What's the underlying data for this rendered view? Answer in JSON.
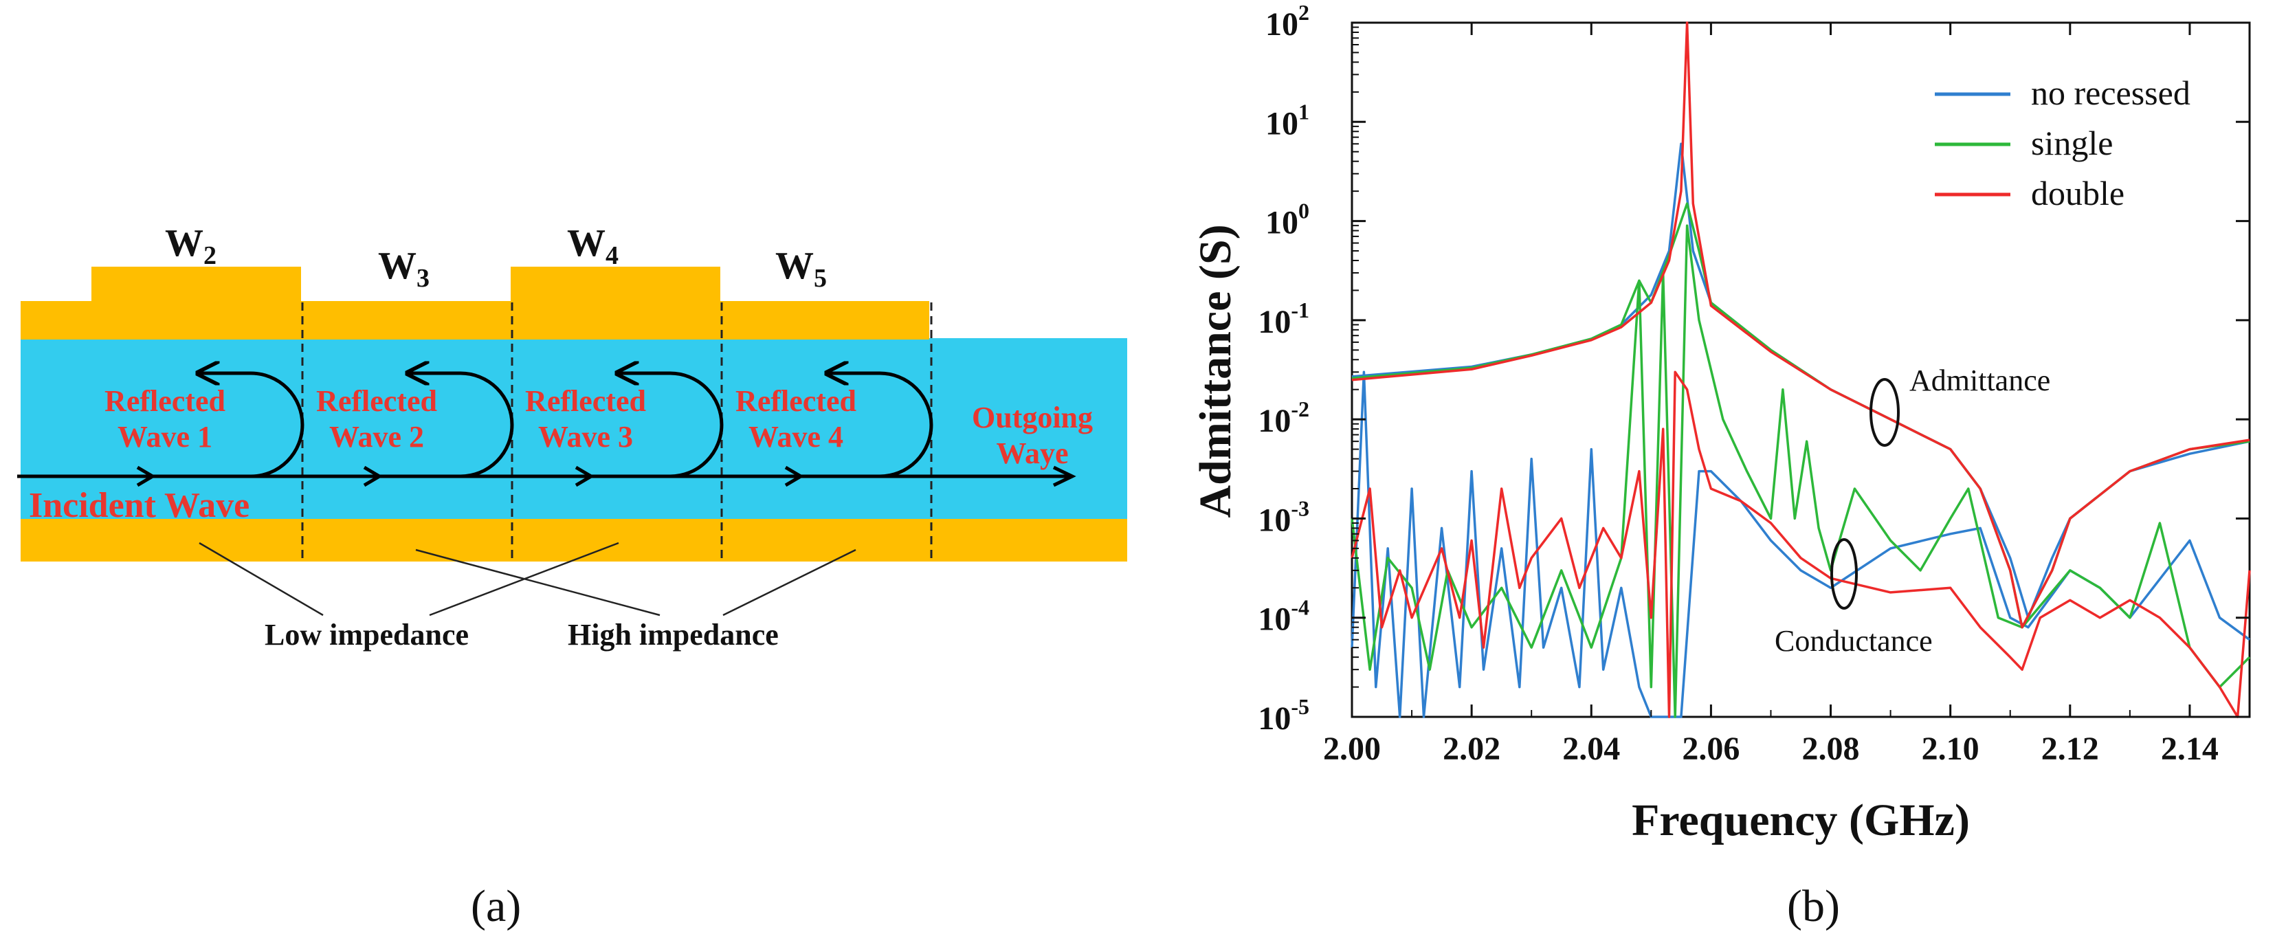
{
  "colors": {
    "electrode": "#FFBE00",
    "substrate": "#33CCEE",
    "wave_text": "#E8372F",
    "arrow": "#000000",
    "no_recessed": "#2F7FCF",
    "single": "#2DB83A",
    "double": "#EE2A2A"
  },
  "panel_a": {
    "label": "(a)",
    "width_labels": [
      {
        "main": "W",
        "sub": "2"
      },
      {
        "main": "W",
        "sub": "3"
      },
      {
        "main": "W",
        "sub": "4"
      },
      {
        "main": "W",
        "sub": "5"
      }
    ],
    "reflected_waves": [
      {
        "line1": "Reflected",
        "line2": "Wave 1"
      },
      {
        "line1": "Reflected",
        "line2": "Wave 2"
      },
      {
        "line1": "Reflected",
        "line2": "Wave 3"
      },
      {
        "line1": "Reflected",
        "line2": "Wave 4"
      }
    ],
    "outgoing": {
      "line1": "Outgoing",
      "line2": "Waye"
    },
    "incident": "Incident Wave",
    "low_impedance": "Low impedance",
    "high_impedance": "High impedance"
  },
  "panel_b": {
    "label": "(b)",
    "annotations": {
      "admittance": "Admittance",
      "conductance": "Conductance"
    }
  },
  "chart_data": {
    "type": "line",
    "xlabel": "Frequency (GHz)",
    "ylabel": "Admittance (S)",
    "xlim": [
      2.0,
      2.15
    ],
    "ylim": [
      1e-05,
      100
    ],
    "yscale": "log",
    "x_ticks": [
      "2.00",
      "2.02",
      "2.04",
      "2.06",
      "2.08",
      "2.10",
      "2.12",
      "2.14"
    ],
    "y_ticks": [
      {
        "base": "10",
        "exp": "-5"
      },
      {
        "base": "10",
        "exp": "-4"
      },
      {
        "base": "10",
        "exp": "-3"
      },
      {
        "base": "10",
        "exp": "-2"
      },
      {
        "base": "10",
        "exp": "-1"
      },
      {
        "base": "10",
        "exp": "0"
      },
      {
        "base": "10",
        "exp": "1"
      },
      {
        "base": "10",
        "exp": "2"
      }
    ],
    "legend_position": "top-right",
    "legend": [
      "no recessed",
      "single",
      "double"
    ],
    "series": [
      {
        "name": "no recessed",
        "admittance": [
          [
            2.0,
            0.027
          ],
          [
            2.02,
            0.034
          ],
          [
            2.03,
            0.045
          ],
          [
            2.04,
            0.065
          ],
          [
            2.045,
            0.09
          ],
          [
            2.05,
            0.18
          ],
          [
            2.053,
            0.5
          ],
          [
            2.055,
            6
          ],
          [
            2.057,
            0.5
          ],
          [
            2.06,
            0.15
          ],
          [
            2.07,
            0.05
          ],
          [
            2.08,
            0.02
          ],
          [
            2.09,
            0.01
          ],
          [
            2.1,
            0.005
          ],
          [
            2.105,
            0.002
          ],
          [
            2.11,
            0.0004
          ],
          [
            2.113,
            0.0001
          ],
          [
            2.117,
            0.0004
          ],
          [
            2.12,
            0.001
          ],
          [
            2.13,
            0.003
          ],
          [
            2.14,
            0.0045
          ],
          [
            2.15,
            0.006
          ]
        ],
        "conductance": [
          [
            2.0,
            5e-05
          ],
          [
            2.002,
            0.03
          ],
          [
            2.004,
            2e-05
          ],
          [
            2.006,
            0.0005
          ],
          [
            2.008,
            1e-05
          ],
          [
            2.01,
            0.002
          ],
          [
            2.012,
            1e-05
          ],
          [
            2.015,
            0.0008
          ],
          [
            2.018,
            2e-05
          ],
          [
            2.02,
            0.003
          ],
          [
            2.022,
            3e-05
          ],
          [
            2.025,
            0.0005
          ],
          [
            2.028,
            2e-05
          ],
          [
            2.03,
            0.004
          ],
          [
            2.032,
            5e-05
          ],
          [
            2.035,
            0.0002
          ],
          [
            2.038,
            2e-05
          ],
          [
            2.04,
            0.005
          ],
          [
            2.042,
            3e-05
          ],
          [
            2.045,
            0.0002
          ],
          [
            2.048,
            2e-05
          ],
          [
            2.05,
            1e-05
          ],
          [
            2.052,
            1e-05
          ],
          [
            2.055,
            1e-05
          ],
          [
            2.058,
            0.003
          ],
          [
            2.06,
            0.003
          ],
          [
            2.065,
            0.0015
          ],
          [
            2.07,
            0.0006
          ],
          [
            2.075,
            0.0003
          ],
          [
            2.08,
            0.0002
          ],
          [
            2.09,
            0.0005
          ],
          [
            2.1,
            0.0007
          ],
          [
            2.105,
            0.0008
          ],
          [
            2.11,
            0.0001
          ],
          [
            2.113,
            8e-05
          ],
          [
            2.12,
            0.0003
          ],
          [
            2.125,
            0.0002
          ],
          [
            2.13,
            0.0001
          ],
          [
            2.14,
            0.0006
          ],
          [
            2.145,
            0.0001
          ],
          [
            2.15,
            6e-05
          ]
        ]
      },
      {
        "name": "single",
        "admittance": [
          [
            2.0,
            0.026
          ],
          [
            2.02,
            0.033
          ],
          [
            2.03,
            0.045
          ],
          [
            2.04,
            0.065
          ],
          [
            2.045,
            0.09
          ],
          [
            2.048,
            0.25
          ],
          [
            2.05,
            0.15
          ],
          [
            2.053,
            0.45
          ],
          [
            2.056,
            1.5
          ],
          [
            2.058,
            0.5
          ],
          [
            2.06,
            0.15
          ],
          [
            2.07,
            0.05
          ],
          [
            2.08,
            0.02
          ],
          [
            2.09,
            0.01
          ],
          [
            2.1,
            0.005
          ],
          [
            2.105,
            0.002
          ],
          [
            2.11,
            0.0003
          ],
          [
            2.112,
            8e-05
          ],
          [
            2.117,
            0.0003
          ],
          [
            2.12,
            0.001
          ],
          [
            2.13,
            0.003
          ],
          [
            2.14,
            0.005
          ],
          [
            2.15,
            0.006
          ]
        ],
        "conductance": [
          [
            2.0,
            0.001
          ],
          [
            2.003,
            3e-05
          ],
          [
            2.006,
            0.0004
          ],
          [
            2.01,
            0.0002
          ],
          [
            2.013,
            3e-05
          ],
          [
            2.016,
            0.0003
          ],
          [
            2.02,
            8e-05
          ],
          [
            2.025,
            0.0002
          ],
          [
            2.03,
            5e-05
          ],
          [
            2.035,
            0.0003
          ],
          [
            2.04,
            5e-05
          ],
          [
            2.045,
            0.0004
          ],
          [
            2.048,
            0.25
          ],
          [
            2.05,
            2e-05
          ],
          [
            2.052,
            0.3
          ],
          [
            2.054,
            1e-05
          ],
          [
            2.056,
            0.9
          ],
          [
            2.058,
            0.1
          ],
          [
            2.062,
            0.01
          ],
          [
            2.066,
            0.003
          ],
          [
            2.07,
            0.001
          ],
          [
            2.072,
            0.02
          ],
          [
            2.074,
            0.001
          ],
          [
            2.076,
            0.006
          ],
          [
            2.078,
            0.0008
          ],
          [
            2.08,
            0.0003
          ],
          [
            2.084,
            0.002
          ],
          [
            2.09,
            0.0006
          ],
          [
            2.095,
            0.0003
          ],
          [
            2.1,
            0.001
          ],
          [
            2.103,
            0.002
          ],
          [
            2.108,
            0.0001
          ],
          [
            2.112,
            8e-05
          ],
          [
            2.12,
            0.0003
          ],
          [
            2.125,
            0.0002
          ],
          [
            2.13,
            0.0001
          ],
          [
            2.135,
            0.0009
          ],
          [
            2.14,
            5e-05
          ],
          [
            2.145,
            2e-05
          ],
          [
            2.15,
            4e-05
          ]
        ]
      },
      {
        "name": "double",
        "admittance": [
          [
            2.0,
            0.025
          ],
          [
            2.02,
            0.032
          ],
          [
            2.03,
            0.044
          ],
          [
            2.04,
            0.063
          ],
          [
            2.045,
            0.085
          ],
          [
            2.05,
            0.15
          ],
          [
            2.053,
            0.4
          ],
          [
            2.055,
            2
          ],
          [
            2.056,
            100
          ],
          [
            2.057,
            1.5
          ],
          [
            2.06,
            0.14
          ],
          [
            2.07,
            0.048
          ],
          [
            2.08,
            0.02
          ],
          [
            2.09,
            0.01
          ],
          [
            2.1,
            0.005
          ],
          [
            2.105,
            0.002
          ],
          [
            2.11,
            0.0003
          ],
          [
            2.112,
            8e-05
          ],
          [
            2.117,
            0.0003
          ],
          [
            2.12,
            0.001
          ],
          [
            2.13,
            0.003
          ],
          [
            2.14,
            0.005
          ],
          [
            2.15,
            0.0062
          ]
        ],
        "conductance": [
          [
            2.0,
            0.0004
          ],
          [
            2.003,
            0.002
          ],
          [
            2.005,
            8e-05
          ],
          [
            2.008,
            0.0003
          ],
          [
            2.01,
            0.0001
          ],
          [
            2.015,
            0.0005
          ],
          [
            2.018,
            0.0001
          ],
          [
            2.02,
            0.0006
          ],
          [
            2.022,
            5e-05
          ],
          [
            2.025,
            0.002
          ],
          [
            2.028,
            0.0002
          ],
          [
            2.03,
            0.0004
          ],
          [
            2.035,
            0.001
          ],
          [
            2.038,
            0.0002
          ],
          [
            2.042,
            0.0008
          ],
          [
            2.045,
            0.0004
          ],
          [
            2.048,
            0.003
          ],
          [
            2.05,
            0.0001
          ],
          [
            2.052,
            0.008
          ],
          [
            2.053,
            1e-05
          ],
          [
            2.054,
            0.03
          ],
          [
            2.056,
            0.02
          ],
          [
            2.058,
            0.005
          ],
          [
            2.06,
            0.002
          ],
          [
            2.065,
            0.0015
          ],
          [
            2.07,
            0.0009
          ],
          [
            2.075,
            0.0004
          ],
          [
            2.08,
            0.00025
          ],
          [
            2.09,
            0.00018
          ],
          [
            2.1,
            0.0002
          ],
          [
            2.105,
            8e-05
          ],
          [
            2.11,
            4e-05
          ],
          [
            2.112,
            3e-05
          ],
          [
            2.115,
            0.0001
          ],
          [
            2.12,
            0.00015
          ],
          [
            2.125,
            0.0001
          ],
          [
            2.13,
            0.00015
          ],
          [
            2.135,
            0.0001
          ],
          [
            2.14,
            5e-05
          ],
          [
            2.145,
            2e-05
          ],
          [
            2.148,
            1e-05
          ],
          [
            2.15,
            0.0003
          ]
        ]
      }
    ]
  }
}
